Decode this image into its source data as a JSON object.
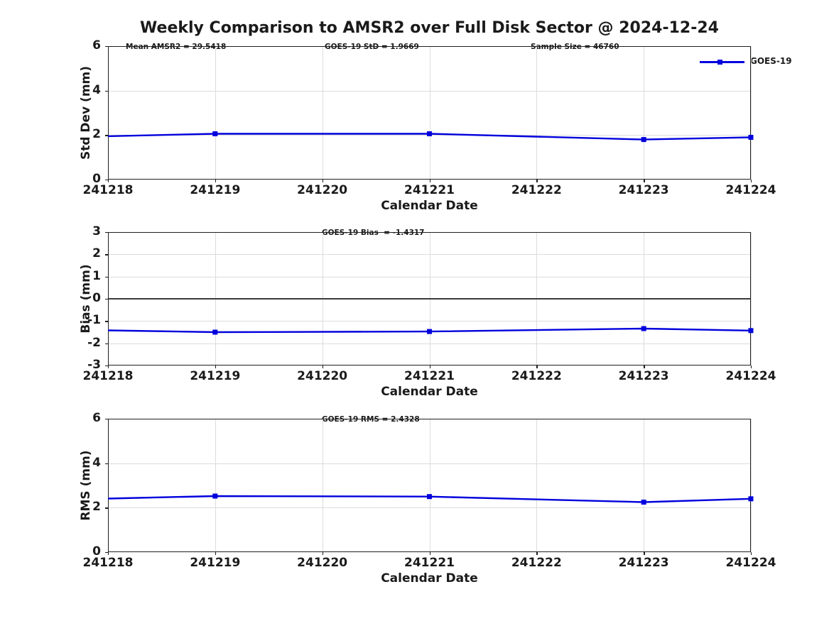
{
  "title": "Weekly Comparison to AMSR2 over Full Disk Sector @ 2024-12-24",
  "legend": {
    "label": "GOES-19"
  },
  "colors": {
    "line": "#0000dd",
    "grid": "#dcdcdc",
    "zero_line": "#3b3b3b",
    "axis": "#1f1f1f",
    "text": "#1a1a1a"
  },
  "chart_data": [
    {
      "type": "line",
      "name": "std-dev",
      "annotations": [
        "Mean AMSR2 = 29.5418",
        "GOES-19 StD = 1.9669",
        "Sample Size = 46760"
      ],
      "series": [
        {
          "name": "GOES-19",
          "x": [
            241218,
            241219,
            241221,
            241223,
            241224
          ],
          "values": [
            1.95,
            2.06,
            2.06,
            1.8,
            1.9
          ]
        }
      ],
      "xlabel": "Calendar Date",
      "ylabel": "Std Dev (mm)",
      "x_ticks": [
        241218,
        241219,
        241220,
        241221,
        241222,
        241223,
        241224
      ],
      "y_ticks": [
        0,
        2,
        4,
        6
      ],
      "xlim": [
        241218,
        241224
      ],
      "ylim": [
        0,
        6
      ],
      "zero_line": false,
      "grid": true,
      "marker": "square",
      "legend_position": "upper right"
    },
    {
      "type": "line",
      "name": "bias",
      "annotations": [
        "GOES-19 Bias  = -1.4317"
      ],
      "series": [
        {
          "name": "GOES-19",
          "x": [
            241218,
            241219,
            241221,
            241223,
            241224
          ],
          "values": [
            -1.42,
            -1.5,
            -1.47,
            -1.34,
            -1.43
          ]
        }
      ],
      "xlabel": "Calendar Date",
      "ylabel": "Bias (mm)",
      "x_ticks": [
        241218,
        241219,
        241220,
        241221,
        241222,
        241223,
        241224
      ],
      "y_ticks": [
        -3,
        -2,
        -1,
        0,
        1,
        2,
        3
      ],
      "xlim": [
        241218,
        241224
      ],
      "ylim": [
        -3,
        3
      ],
      "zero_line": true,
      "grid": true,
      "marker": "square"
    },
    {
      "type": "line",
      "name": "rms",
      "annotations": [
        "GOES-19 RMS = 2.4328"
      ],
      "series": [
        {
          "name": "GOES-19",
          "x": [
            241218,
            241219,
            241221,
            241223,
            241224
          ],
          "values": [
            2.41,
            2.52,
            2.5,
            2.25,
            2.4
          ]
        }
      ],
      "xlabel": "Calendar Date",
      "ylabel": "RMS (mm)",
      "x_ticks": [
        241218,
        241219,
        241220,
        241221,
        241222,
        241223,
        241224
      ],
      "y_ticks": [
        0,
        2,
        4,
        6
      ],
      "xlim": [
        241218,
        241224
      ],
      "ylim": [
        0,
        6
      ],
      "zero_line": false,
      "grid": true,
      "marker": "square"
    }
  ]
}
